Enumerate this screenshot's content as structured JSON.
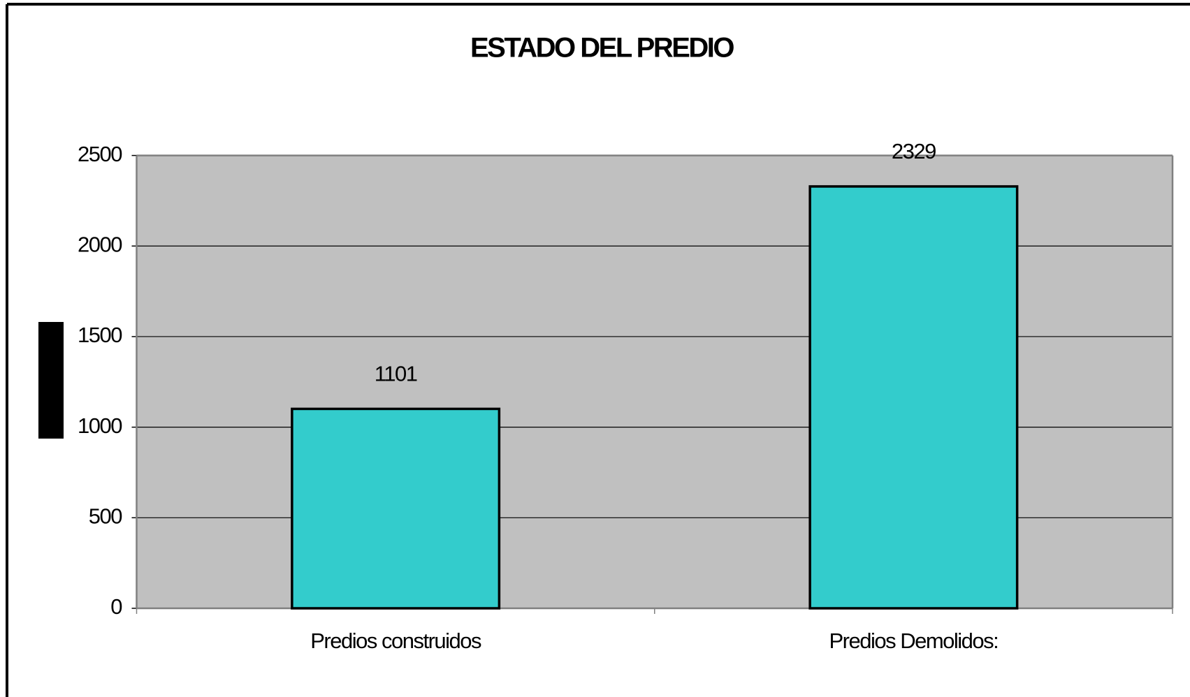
{
  "chart_data": {
    "type": "bar",
    "title": "ESTADO DEL PREDIO",
    "categories": [
      "Predios construidos",
      "Predios Demolidos:"
    ],
    "values": [
      1101,
      2329
    ],
    "color": "#33cccc",
    "ylim": [
      0,
      2500
    ],
    "yticks": [
      0,
      500,
      1000,
      1500,
      2000,
      2500
    ],
    "grid": true
  }
}
